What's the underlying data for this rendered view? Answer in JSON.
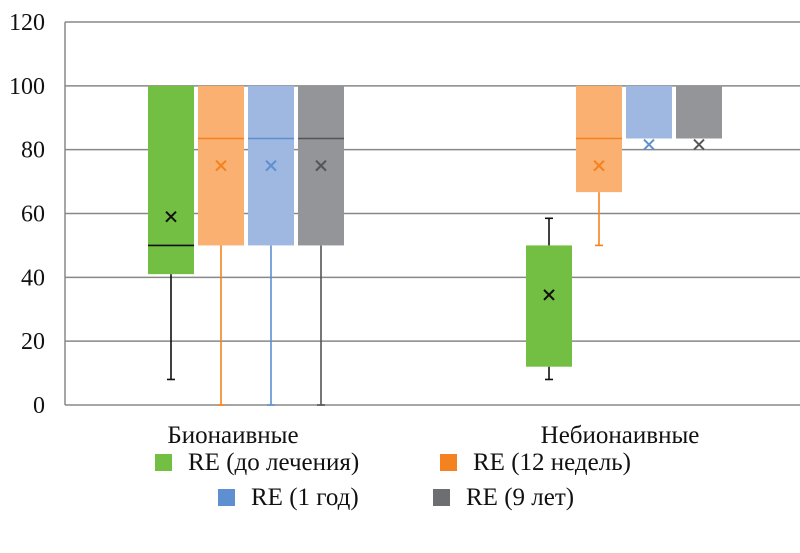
{
  "chart_data": {
    "type": "boxplot",
    "title": "",
    "xlabel": "",
    "ylabel": "",
    "ylim": [
      0,
      120
    ],
    "yticks": [
      0,
      20,
      40,
      60,
      80,
      100,
      120
    ],
    "grid": true,
    "legend_position": "bottom",
    "categories": [
      "Бионаивные",
      "Небионаивные"
    ],
    "series": [
      {
        "name": "RE (до лечения)",
        "box_color": "#72BF44",
        "legend_color": "#72BF44",
        "mark_color": "#111111",
        "stats": [
          {
            "min": 8,
            "q1": 41,
            "median": 50,
            "q3": 100,
            "max": 100,
            "mean": 59
          },
          {
            "min": 8,
            "q1": 12,
            "median": null,
            "q3": 50,
            "max": 58.5,
            "mean": 34.5
          }
        ]
      },
      {
        "name": "RE (12 недель)",
        "box_color": "#F9B071",
        "legend_color": "#F58220",
        "mark_color": "#F58220",
        "stats": [
          {
            "min": 0,
            "q1": 50,
            "median": 83.5,
            "q3": 100,
            "max": 100,
            "mean": 75
          },
          {
            "min": 50,
            "q1": 66.7,
            "median": 83.5,
            "q3": 100,
            "max": 100,
            "mean": 75
          }
        ]
      },
      {
        "name": "RE (1 год)",
        "box_color": "#9EB8E2",
        "legend_color": "#5E8FD1",
        "mark_color": "#5E8FD1",
        "stats": [
          {
            "min": 0,
            "q1": 50,
            "median": 83.5,
            "q3": 100,
            "max": 100,
            "mean": 75
          },
          {
            "min": 83.5,
            "q1": 83.5,
            "median": 83.5,
            "q3": 100,
            "max": 100,
            "mean": 81.6
          }
        ]
      },
      {
        "name": "RE (9 лет)",
        "box_color": "#939598",
        "legend_color": "#6D6E71",
        "mark_color": "#555555",
        "stats": [
          {
            "min": 0,
            "q1": 50,
            "median": 83.5,
            "q3": 100,
            "max": 100,
            "mean": 75
          },
          {
            "min": 83.5,
            "q1": 83.5,
            "median": 83.5,
            "q3": 100,
            "max": 100,
            "mean": 81.6
          }
        ]
      }
    ]
  }
}
